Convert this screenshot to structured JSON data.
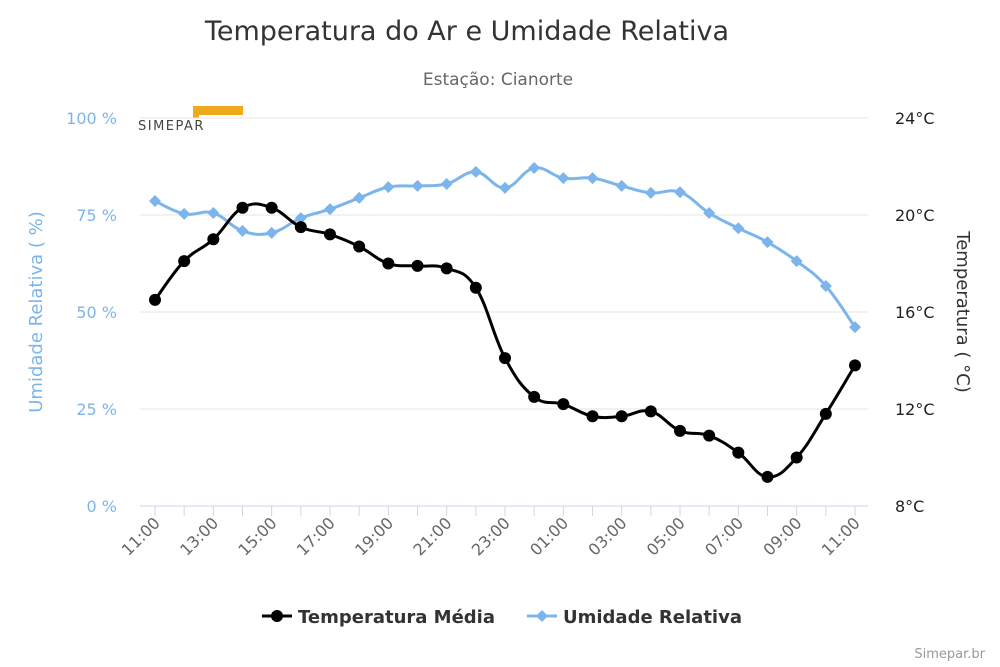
{
  "chart_data": {
    "type": "line",
    "title": "Temperatura do Ar e Umidade Relativa",
    "subtitle": "Estação: Cianorte",
    "x": [
      "11:00",
      "12:00",
      "13:00",
      "14:00",
      "15:00",
      "16:00",
      "17:00",
      "18:00",
      "19:00",
      "20:00",
      "21:00",
      "22:00",
      "23:00",
      "00:00",
      "01:00",
      "02:00",
      "03:00",
      "04:00",
      "05:00",
      "06:00",
      "07:00",
      "08:00",
      "09:00",
      "10:00",
      "11:00"
    ],
    "xtick_labels": [
      "11:00",
      "13:00",
      "15:00",
      "17:00",
      "19:00",
      "21:00",
      "23:00",
      "01:00",
      "03:00",
      "05:00",
      "07:00",
      "09:00",
      "11:00"
    ],
    "y_left": {
      "label": "Umidade Relativa ( %)",
      "range": [
        0,
        100
      ],
      "ticks": [
        "0 %",
        "25 %",
        "50 %",
        "75 %",
        "100 %"
      ],
      "tick_values": [
        0,
        25,
        50,
        75,
        100
      ]
    },
    "y_right": {
      "label": "Temperatura ( °C)",
      "range": [
        8,
        24
      ],
      "ticks": [
        "8°C",
        "12°C",
        "16°C",
        "20°C",
        "24°C"
      ],
      "tick_values": [
        8,
        12,
        16,
        20,
        24
      ]
    },
    "grid": true,
    "legend_placement": "bottom",
    "series": [
      {
        "name": "Temperatura Média",
        "axis": "right",
        "color": "#000000",
        "marker": "circle",
        "values": [
          16.5,
          18.1,
          19.0,
          20.3,
          20.3,
          19.5,
          19.2,
          18.7,
          18.0,
          17.9,
          17.8,
          17.0,
          14.1,
          12.5,
          12.2,
          11.7,
          11.7,
          11.9,
          11.1,
          10.9,
          10.2,
          9.2,
          10.0,
          11.8,
          13.8
        ]
      },
      {
        "name": "Umidade Relativa",
        "axis": "left",
        "color": "#7cb5ec",
        "marker": "diamond",
        "values": [
          78.6,
          75.3,
          75.5,
          70.9,
          70.4,
          74.2,
          76.5,
          79.4,
          82.2,
          82.5,
          83.0,
          86.1,
          82.0,
          87.1,
          84.5,
          84.5,
          82.5,
          80.7,
          80.9,
          75.5,
          71.6,
          68.0,
          63.1,
          56.7,
          46.1
        ]
      }
    ],
    "credits": "Simepar.br",
    "logo_text": "SIMEPAR"
  }
}
